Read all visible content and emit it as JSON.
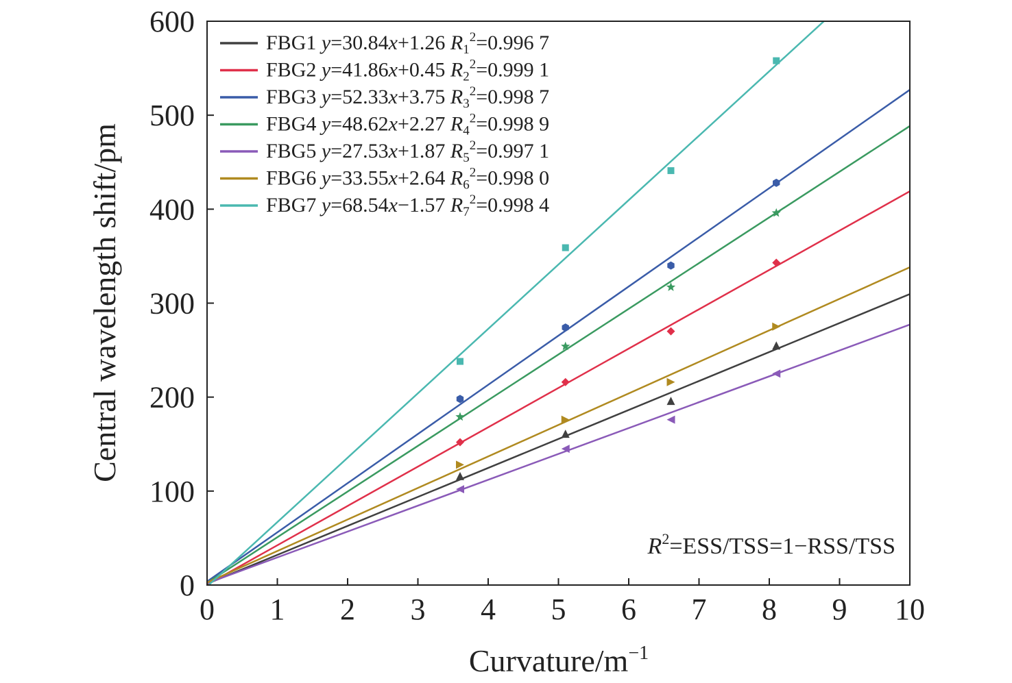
{
  "chart_data": {
    "type": "scatter",
    "xlabel": "Curvature/m",
    "xlabel_sup": "−1",
    "ylabel": "Central wavelength shift/pm",
    "xlim": [
      0,
      10
    ],
    "ylim": [
      0,
      600
    ],
    "xticks": [
      "0",
      "1",
      "2",
      "3",
      "4",
      "5",
      "6",
      "7",
      "8",
      "9",
      "10"
    ],
    "yticks": [
      "0",
      "100",
      "200",
      "300",
      "400",
      "500",
      "600"
    ],
    "grid": false,
    "legend_position": "top-left",
    "annotation": {
      "r": "R",
      "sup": "2",
      "rest": "=ESS/TSS=1−RSS/TSS"
    },
    "x": [
      3.6,
      5.1,
      6.6,
      8.1
    ],
    "series": [
      {
        "name": "FBG1",
        "color": "#404040",
        "marker": "triangle-up",
        "values": [
          116,
          161,
          196,
          255
        ],
        "slope": 30.84,
        "intercept": 1.26,
        "eq_slope": "=30.84",
        "eq_int": "+1.26",
        "r_sub": "1",
        "r2": "=0.996 7"
      },
      {
        "name": "FBG2",
        "color": "#e0304a",
        "marker": "diamond",
        "values": [
          152,
          216,
          270,
          343
        ],
        "slope": 41.86,
        "intercept": 0.45,
        "eq_slope": "=41.86",
        "eq_int": "+0.45",
        "r_sub": "2",
        "r2": "=0.999 1"
      },
      {
        "name": "FBG3",
        "color": "#3a5ca8",
        "marker": "hexagon",
        "values": [
          198,
          274,
          340,
          428
        ],
        "slope": 52.33,
        "intercept": 3.75,
        "eq_slope": "=52.33",
        "eq_int": "+3.75",
        "r_sub": "3",
        "r2": "=0.998 7"
      },
      {
        "name": "FBG4",
        "color": "#3a9a60",
        "marker": "star",
        "values": [
          179,
          254,
          317,
          396
        ],
        "slope": 48.62,
        "intercept": 2.27,
        "eq_slope": "=48.62",
        "eq_int": "+2.27",
        "r_sub": "4",
        "r2": "=0.998 9"
      },
      {
        "name": "FBG5",
        "color": "#8a5ab8",
        "marker": "triangle-left",
        "values": [
          102,
          145,
          176,
          225
        ],
        "slope": 27.53,
        "intercept": 1.87,
        "eq_slope": "=27.53",
        "eq_int": "+1.87",
        "r_sub": "5",
        "r2": "=0.997 1"
      },
      {
        "name": "FBG6",
        "color": "#b08a20",
        "marker": "triangle-right",
        "values": [
          128,
          176,
          216,
          275
        ],
        "slope": 33.55,
        "intercept": 2.64,
        "eq_slope": "=33.55",
        "eq_int": "+2.64",
        "r_sub": "6",
        "r2": "=0.998 0"
      },
      {
        "name": "FBG7",
        "color": "#4ab8b0",
        "marker": "square",
        "values": [
          238,
          359,
          441,
          558
        ],
        "slope": 68.54,
        "intercept": -1.57,
        "eq_slope": "=68.54",
        "eq_int": "−1.57",
        "r_sub": "7",
        "r2": "=0.998 4"
      }
    ]
  }
}
